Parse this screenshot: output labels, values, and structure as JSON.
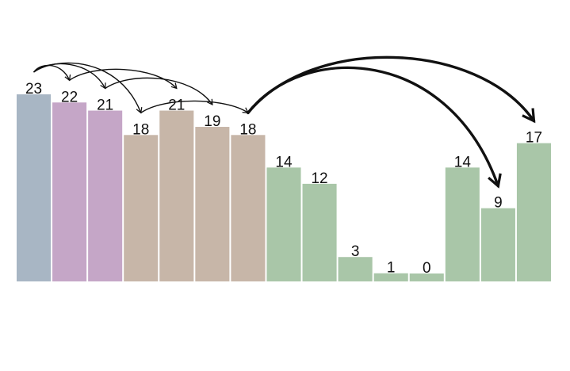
{
  "chart_data": {
    "type": "bar",
    "title": "",
    "xlabel": "",
    "ylabel": "",
    "ylim": [
      0,
      23
    ],
    "grid": false,
    "legend": "none",
    "values": [
      23,
      22,
      21,
      18,
      21,
      19,
      18,
      14,
      12,
      3,
      1,
      0,
      14,
      9,
      17
    ],
    "labels": [
      "23",
      "22",
      "21",
      "18",
      "21",
      "19",
      "18",
      "14",
      "12",
      "3",
      "1",
      "0",
      "14",
      "9",
      "17"
    ],
    "bar_colors": [
      "#a8b6c4",
      "#c5a6c7",
      "#c5a6c7",
      "#c7b6a8",
      "#c7b6a8",
      "#c7b6a8",
      "#c7b6a8",
      "#a9c6a8",
      "#a9c6a8",
      "#a9c6a8",
      "#a9c6a8",
      "#a9c6a8",
      "#a9c6a8",
      "#a9c6a8",
      "#a9c6a8"
    ],
    "arrows": [
      {
        "from": 0,
        "to": 1,
        "style": "thin"
      },
      {
        "from": 0,
        "to": 2,
        "style": "thin"
      },
      {
        "from": 0,
        "to": 3,
        "style": "thin"
      },
      {
        "from": 1,
        "to": 4,
        "style": "thin"
      },
      {
        "from": 2,
        "to": 5,
        "style": "thin"
      },
      {
        "from": 3,
        "to": 6,
        "style": "thin"
      },
      {
        "from": 6,
        "to": 14,
        "style": "thick"
      },
      {
        "from": 6,
        "to": 13,
        "style": "thick"
      }
    ]
  }
}
